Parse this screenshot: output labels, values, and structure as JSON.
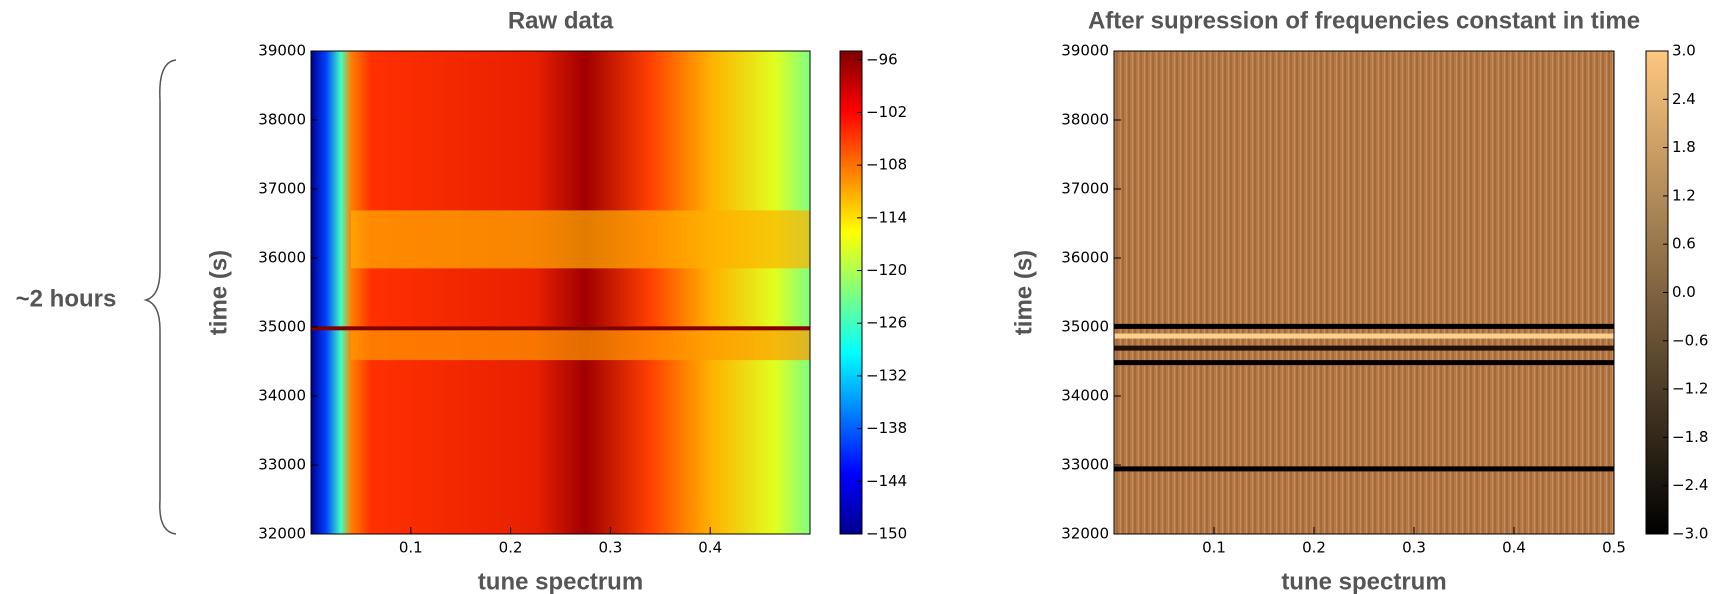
{
  "chart_data": [
    {
      "type": "heatmap",
      "title": "Raw data",
      "xlabel": "tune spectrum",
      "ylabel": "time (s)",
      "annotation": "~2 hours",
      "xlim": [
        0,
        0.5
      ],
      "xticks": [
        0.1,
        0.2,
        0.3,
        0.4
      ],
      "ylim": [
        32000,
        39000
      ],
      "yticks": [
        32000,
        33000,
        34000,
        35000,
        36000,
        37000,
        38000,
        39000
      ],
      "colormap": "jet",
      "clim": [
        -150,
        -95
      ],
      "cticks": [
        {
          "value": -150,
          "label": "−150"
        },
        {
          "value": -144,
          "label": "−144"
        },
        {
          "value": -138,
          "label": "−138"
        },
        {
          "value": -132,
          "label": "−132"
        },
        {
          "value": -126,
          "label": "−126"
        },
        {
          "value": -120,
          "label": "−120"
        },
        {
          "value": -114,
          "label": "−114"
        },
        {
          "value": -108,
          "label": "−108"
        },
        {
          "value": -102,
          "label": "−102"
        },
        {
          "value": -96,
          "label": "−96"
        }
      ]
    },
    {
      "type": "heatmap",
      "title": "After supression of frequencies constant in time",
      "xlabel": "tune spectrum",
      "ylabel": "time (s)",
      "xlim": [
        0,
        0.5
      ],
      "xticks": [
        0.1,
        0.2,
        0.3,
        0.4,
        0.5
      ],
      "ylim": [
        32000,
        39000
      ],
      "yticks": [
        32000,
        33000,
        34000,
        35000,
        36000,
        37000,
        38000,
        39000
      ],
      "colormap": "copper",
      "clim": [
        -3,
        3
      ],
      "cticks": [
        {
          "value": -3,
          "label": "−3.0"
        },
        {
          "value": -2.4,
          "label": "−2.4"
        },
        {
          "value": -1.8,
          "label": "−1.8"
        },
        {
          "value": -1.2,
          "label": "−1.2"
        },
        {
          "value": -0.6,
          "label": "−0.6"
        },
        {
          "value": 0,
          "label": "0.0"
        },
        {
          "value": 0.6,
          "label": "0.6"
        },
        {
          "value": 1.2,
          "label": "1.2"
        },
        {
          "value": 1.8,
          "label": "1.8"
        },
        {
          "value": 2.4,
          "label": "2.4"
        },
        {
          "value": 3,
          "label": "3.0"
        }
      ]
    }
  ]
}
